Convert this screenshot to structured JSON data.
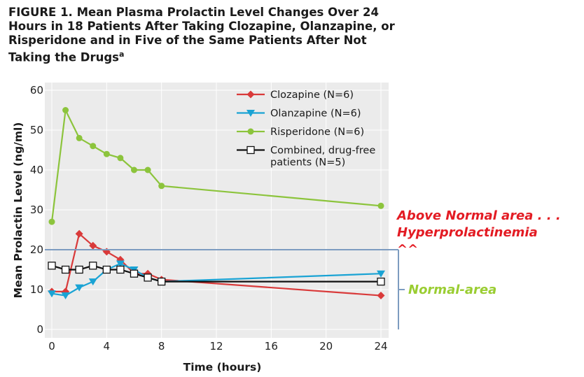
{
  "figure": {
    "title": "FIGURE 1. Mean Plasma Prolactin Level Changes Over 24 Hours in 18 Patients After Taking Clozapine, Olanzapine, or Risperidone and in Five of the Same Patients After Not Taking the Drugs",
    "title_superscript": "a"
  },
  "annotations": {
    "above_normal": "Above Normal area . . .\nHyperprolactinemia\n^^",
    "normal": "Normal-area",
    "above_color": "#e31b23",
    "normal_color": "#9acd32",
    "threshold": 20,
    "bracket_color": "#7d9cc0"
  },
  "chart_data": {
    "type": "line",
    "xlabel": "Time (hours)",
    "ylabel": "Mean Prolactin Level (ng/ml)",
    "xlim": [
      0,
      24
    ],
    "ylim": [
      0,
      60
    ],
    "xticks": [
      0,
      4,
      8,
      12,
      16,
      20,
      24
    ],
    "yticks": [
      0,
      10,
      20,
      30,
      40,
      50,
      60
    ],
    "grid": true,
    "background": "#ebebeb",
    "legend_position": "top-right",
    "series": [
      {
        "name": "Clozapine (N=6)",
        "color": "#d93a3a",
        "marker": "diamond",
        "x": [
          0,
          1,
          2,
          3,
          4,
          5,
          6,
          7,
          8,
          24
        ],
        "y": [
          9.5,
          9.5,
          24,
          21,
          19.5,
          17.5,
          14,
          14,
          12.5,
          8.5
        ]
      },
      {
        "name": "Olanzapine (N=6)",
        "color": "#1aa3d4",
        "marker": "triangle-down",
        "x": [
          0,
          1,
          2,
          3,
          4,
          5,
          6,
          7,
          8,
          24
        ],
        "y": [
          9,
          8.5,
          10.5,
          12,
          15,
          16.5,
          15,
          13,
          12,
          14
        ]
      },
      {
        "name": "Risperidone (N=6)",
        "color": "#8cc43c",
        "marker": "circle",
        "x": [
          0,
          1,
          2,
          3,
          4,
          5,
          6,
          7,
          8,
          24
        ],
        "y": [
          27,
          55,
          48,
          46,
          44,
          43,
          40,
          40,
          36,
          31
        ]
      },
      {
        "name_lines": [
          "Combined, drug-free",
          "patients (N=5)"
        ],
        "color": "#111111",
        "marker": "square-open",
        "x": [
          0,
          1,
          2,
          3,
          4,
          5,
          6,
          7,
          8,
          24
        ],
        "y": [
          16,
          15,
          15,
          16,
          15,
          15,
          14,
          13,
          12,
          12
        ]
      }
    ]
  }
}
